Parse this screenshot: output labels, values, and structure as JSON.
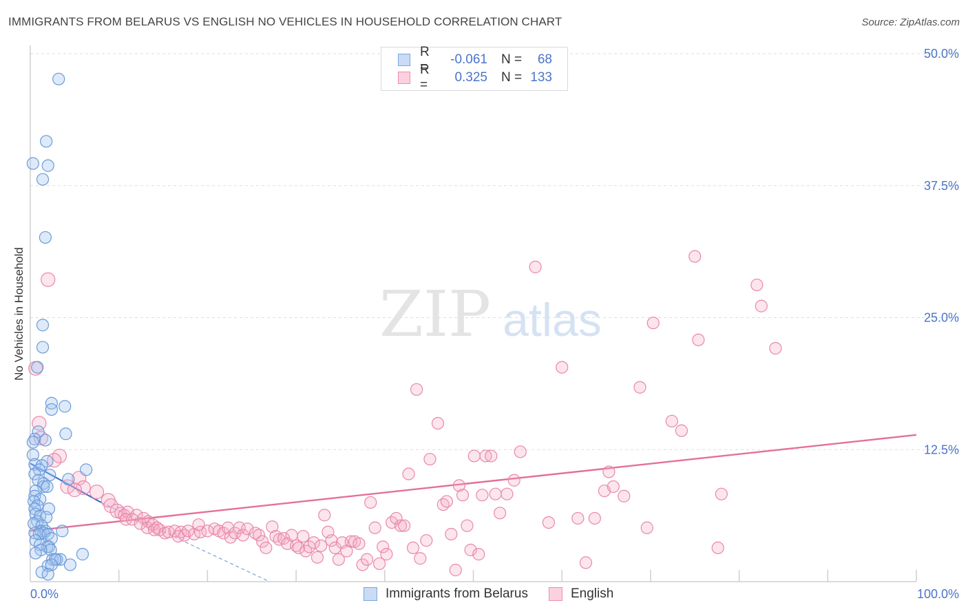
{
  "title": "IMMIGRANTS FROM BELARUS VS ENGLISH NO VEHICLES IN HOUSEHOLD CORRELATION CHART",
  "source": "Source: ZipAtlas.com",
  "watermark": {
    "zip": "ZIP",
    "atlas": "atlas"
  },
  "legend": {
    "rows": [
      {
        "r_label": "R =",
        "r_value": "-0.061",
        "n_label": "N =",
        "n_value": "68",
        "color": "#7aa6e0",
        "fill": "#c9dbf5"
      },
      {
        "r_label": "R =",
        "r_value": "0.325",
        "n_label": "N =",
        "n_value": "133",
        "color": "#ef8fb0",
        "fill": "#fbd0df"
      }
    ]
  },
  "bottom_legend": [
    {
      "label": "Immigrants from Belarus",
      "color": "#7aa6e0",
      "fill": "#c9dbf5"
    },
    {
      "label": "English",
      "color": "#ef8fb0",
      "fill": "#fbd0df"
    }
  ],
  "chart_data": {
    "type": "scatter",
    "ylabel": "No Vehicles in Household",
    "xlim": [
      0,
      100
    ],
    "ylim": [
      0,
      50
    ],
    "x_tick_labels": [
      "0.0%",
      "100.0%"
    ],
    "y_ticks": [
      12.5,
      25.0,
      37.5,
      50.0
    ],
    "y_tick_labels": [
      "12.5%",
      "25.0%",
      "37.5%",
      "50.0%"
    ],
    "grid": true,
    "series": [
      {
        "name": "Immigrants from Belarus",
        "color": "#6a9ad8",
        "fill": "rgba(160,195,240,0.35)",
        "trend": {
          "x": [
            0,
            8
          ],
          "y": [
            11.2,
            7.5
          ],
          "dashed_to": {
            "x": 27,
            "y": 0
          }
        },
        "points": [
          [
            3.2,
            47.6
          ],
          [
            1.8,
            41.7
          ],
          [
            0.3,
            39.6
          ],
          [
            2.0,
            39.4
          ],
          [
            1.4,
            38.1
          ],
          [
            1.7,
            32.6
          ],
          [
            1.4,
            24.3
          ],
          [
            1.4,
            22.2
          ],
          [
            0.8,
            20.3
          ],
          [
            2.4,
            16.9
          ],
          [
            3.9,
            16.6
          ],
          [
            2.4,
            16.3
          ],
          [
            0.9,
            14.2
          ],
          [
            4.0,
            14.0
          ],
          [
            0.5,
            13.5
          ],
          [
            1.7,
            13.4
          ],
          [
            0.3,
            13.2
          ],
          [
            0.3,
            12.0
          ],
          [
            1.9,
            11.4
          ],
          [
            0.5,
            11.1
          ],
          [
            1.3,
            11.0
          ],
          [
            1.0,
            10.6
          ],
          [
            6.3,
            10.6
          ],
          [
            0.5,
            10.2
          ],
          [
            2.2,
            10.1
          ],
          [
            0.9,
            9.6
          ],
          [
            4.3,
            9.7
          ],
          [
            1.5,
            9.3
          ],
          [
            1.5,
            9.0
          ],
          [
            1.9,
            9.0
          ],
          [
            0.6,
            8.6
          ],
          [
            0.5,
            8.1
          ],
          [
            1.1,
            7.8
          ],
          [
            0.4,
            7.6
          ],
          [
            0.8,
            7.2
          ],
          [
            0.5,
            6.9
          ],
          [
            2.1,
            6.9
          ],
          [
            0.6,
            6.4
          ],
          [
            1.1,
            6.2
          ],
          [
            1.8,
            6.1
          ],
          [
            0.8,
            5.7
          ],
          [
            0.4,
            5.5
          ],
          [
            1.3,
            5.3
          ],
          [
            1.2,
            4.8
          ],
          [
            1.7,
            4.8
          ],
          [
            3.6,
            4.8
          ],
          [
            0.5,
            4.6
          ],
          [
            1.5,
            4.6
          ],
          [
            1.0,
            4.5
          ],
          [
            2.0,
            4.5
          ],
          [
            2.4,
            4.1
          ],
          [
            0.6,
            3.9
          ],
          [
            1.1,
            3.5
          ],
          [
            1.9,
            3.3
          ],
          [
            2.1,
            3.3
          ],
          [
            2.3,
            3.0
          ],
          [
            1.2,
            3.0
          ],
          [
            0.6,
            2.7
          ],
          [
            2.5,
            2.1
          ],
          [
            3.0,
            2.1
          ],
          [
            3.4,
            2.1
          ],
          [
            5.9,
            2.6
          ],
          [
            2.8,
            2.1
          ],
          [
            2.0,
            1.5
          ],
          [
            2.4,
            1.6
          ],
          [
            4.5,
            1.6
          ],
          [
            1.3,
            0.9
          ],
          [
            2.0,
            0.7
          ]
        ]
      },
      {
        "name": "English",
        "color": "#e888a9",
        "fill": "rgba(245,170,195,0.3)",
        "trend": {
          "x": [
            0,
            100
          ],
          "y": [
            4.8,
            13.9
          ]
        },
        "points": [
          [
            2.0,
            28.6
          ],
          [
            0.6,
            20.2
          ],
          [
            1.0,
            15.0
          ],
          [
            1.2,
            13.6
          ],
          [
            3.3,
            11.9
          ],
          [
            2.7,
            11.5
          ],
          [
            5.5,
            9.8
          ],
          [
            4.2,
            9.0
          ],
          [
            6.0,
            8.9
          ],
          [
            5.0,
            8.7
          ],
          [
            7.5,
            8.5
          ],
          [
            8.8,
            7.7
          ],
          [
            9.1,
            7.2
          ],
          [
            9.8,
            6.7
          ],
          [
            10.2,
            6.5
          ],
          [
            10.6,
            6.3
          ],
          [
            11.0,
            6.6
          ],
          [
            12.0,
            6.3
          ],
          [
            10.8,
            5.9
          ],
          [
            11.5,
            5.9
          ],
          [
            12.8,
            6.0
          ],
          [
            12.4,
            5.5
          ],
          [
            13.3,
            5.7
          ],
          [
            13.2,
            5.1
          ],
          [
            13.8,
            5.4
          ],
          [
            14.3,
            5.1
          ],
          [
            14.0,
            4.9
          ],
          [
            14.6,
            4.9
          ],
          [
            15.2,
            4.6
          ],
          [
            15.6,
            4.7
          ],
          [
            16.3,
            4.8
          ],
          [
            17.0,
            4.7
          ],
          [
            17.4,
            4.4
          ],
          [
            17.8,
            4.8
          ],
          [
            16.7,
            4.3
          ],
          [
            18.5,
            4.5
          ],
          [
            19.2,
            4.7
          ],
          [
            19.0,
            5.4
          ],
          [
            20.0,
            4.8
          ],
          [
            20.8,
            5.0
          ],
          [
            21.3,
            4.8
          ],
          [
            21.8,
            4.6
          ],
          [
            22.3,
            5.1
          ],
          [
            22.6,
            4.2
          ],
          [
            23.1,
            4.6
          ],
          [
            23.6,
            5.1
          ],
          [
            24.0,
            4.4
          ],
          [
            24.5,
            5.0
          ],
          [
            25.4,
            4.6
          ],
          [
            25.8,
            4.4
          ],
          [
            26.2,
            3.8
          ],
          [
            26.6,
            3.2
          ],
          [
            27.3,
            5.2
          ],
          [
            27.7,
            4.3
          ],
          [
            28.1,
            4.0
          ],
          [
            28.6,
            4.1
          ],
          [
            29.0,
            3.6
          ],
          [
            29.5,
            4.4
          ],
          [
            30.0,
            3.4
          ],
          [
            30.3,
            3.2
          ],
          [
            30.8,
            4.3
          ],
          [
            31.1,
            2.9
          ],
          [
            31.5,
            3.3
          ],
          [
            32.0,
            3.7
          ],
          [
            32.4,
            2.3
          ],
          [
            32.8,
            3.4
          ],
          [
            33.2,
            6.3
          ],
          [
            33.6,
            4.7
          ],
          [
            34.0,
            3.9
          ],
          [
            34.4,
            3.2
          ],
          [
            34.8,
            2.1
          ],
          [
            35.2,
            3.7
          ],
          [
            35.7,
            2.9
          ],
          [
            36.2,
            3.8
          ],
          [
            36.6,
            3.8
          ],
          [
            37.1,
            3.6
          ],
          [
            37.5,
            1.6
          ],
          [
            38.0,
            2.1
          ],
          [
            38.4,
            7.5
          ],
          [
            38.9,
            5.1
          ],
          [
            39.4,
            1.7
          ],
          [
            39.8,
            3.3
          ],
          [
            40.2,
            2.6
          ],
          [
            40.8,
            5.6
          ],
          [
            41.3,
            6.0
          ],
          [
            41.8,
            5.3
          ],
          [
            42.2,
            5.3
          ],
          [
            42.7,
            10.2
          ],
          [
            43.2,
            3.2
          ],
          [
            43.6,
            18.2
          ],
          [
            44.0,
            2.2
          ],
          [
            44.7,
            3.9
          ],
          [
            45.1,
            11.6
          ],
          [
            46.0,
            15.0
          ],
          [
            46.6,
            7.3
          ],
          [
            47.0,
            7.6
          ],
          [
            47.5,
            4.5
          ],
          [
            48.0,
            1.1
          ],
          [
            48.4,
            9.1
          ],
          [
            48.8,
            8.2
          ],
          [
            49.3,
            5.3
          ],
          [
            49.7,
            3.0
          ],
          [
            50.1,
            11.9
          ],
          [
            50.6,
            2.6
          ],
          [
            51.0,
            8.2
          ],
          [
            51.4,
            11.9
          ],
          [
            52.0,
            11.9
          ],
          [
            52.5,
            8.3
          ],
          [
            53.0,
            6.5
          ],
          [
            53.8,
            8.3
          ],
          [
            54.6,
            9.6
          ],
          [
            55.3,
            12.3
          ],
          [
            57.0,
            29.8
          ],
          [
            58.5,
            5.6
          ],
          [
            60.0,
            20.3
          ],
          [
            61.8,
            6.0
          ],
          [
            62.7,
            1.8
          ],
          [
            63.7,
            6.0
          ],
          [
            64.8,
            8.6
          ],
          [
            65.3,
            10.4
          ],
          [
            65.8,
            9.0
          ],
          [
            67.0,
            8.1
          ],
          [
            68.8,
            18.4
          ],
          [
            69.6,
            5.1
          ],
          [
            70.3,
            24.5
          ],
          [
            72.4,
            15.2
          ],
          [
            73.5,
            14.3
          ],
          [
            75.0,
            30.8
          ],
          [
            75.4,
            22.9
          ],
          [
            77.6,
            3.2
          ],
          [
            78.0,
            8.3
          ],
          [
            82.0,
            28.1
          ],
          [
            82.5,
            26.1
          ],
          [
            84.1,
            22.1
          ]
        ]
      }
    ]
  }
}
